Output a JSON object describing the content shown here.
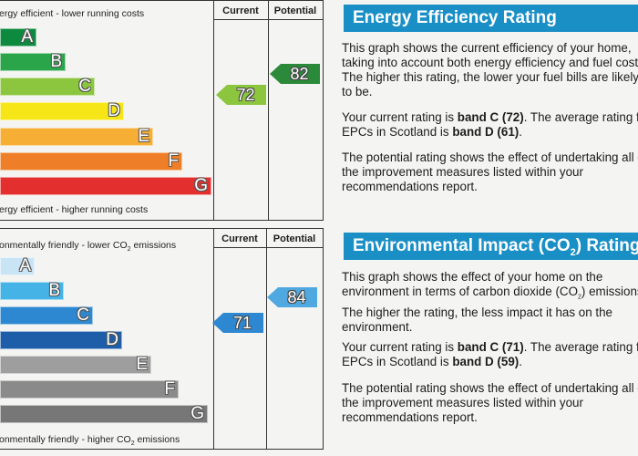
{
  "energy": {
    "current_header": "Current",
    "potential_header": "Potential",
    "top_caption": "ergy efficient - lower running costs",
    "bottom_caption": "ergy efficient - higher running costs",
    "bands": [
      {
        "letter": "A",
        "color": "#0d8a3e"
      },
      {
        "letter": "B",
        "color": "#2aa54a"
      },
      {
        "letter": "C",
        "color": "#8cc63e"
      },
      {
        "letter": "D",
        "color": "#f7e617"
      },
      {
        "letter": "E",
        "color": "#f6ae35"
      },
      {
        "letter": "F",
        "color": "#ef7e28"
      },
      {
        "letter": "G",
        "color": "#e42f2f"
      }
    ],
    "current_value": "72",
    "current_color": "#8cc63e",
    "potential_value": "82",
    "potential_color": "#2a8a3a",
    "title": "Energy Efficiency Rating",
    "para1": "This graph shows the current efficiency of your home, taking into account both energy efficiency and fuel costs. The higher this rating, the lower your fuel bills are likely to be.",
    "para2_prefix": "Your current rating is ",
    "para2_bold1": "band C (72)",
    "para2_mid": ". The average rating for EPCs in Scotland is ",
    "para2_bold2": "band D (61)",
    "para2_end": ".",
    "para3": "The potential rating shows the effect of undertaking all of the improvement measures listed within your recommendations report."
  },
  "environment": {
    "current_header": "Current",
    "potential_header": "Potential",
    "top_caption_prefix": "onmentally friendly - lower CO",
    "top_caption_sub": "2",
    "top_caption_suffix": " emissions",
    "bottom_caption_prefix": "onmentally friendly - higher CO",
    "bottom_caption_sub": "2",
    "bottom_caption_suffix": " emissions",
    "bands": [
      {
        "letter": "A",
        "color": "#c8e4f5"
      },
      {
        "letter": "B",
        "color": "#45b3e6"
      },
      {
        "letter": "C",
        "color": "#2d88d1"
      },
      {
        "letter": "D",
        "color": "#1e5ea8"
      },
      {
        "letter": "E",
        "color": "#9e9e9e"
      },
      {
        "letter": "F",
        "color": "#8a8a8a"
      },
      {
        "letter": "G",
        "color": "#777777"
      }
    ],
    "current_value": "71",
    "current_color": "#2d88d1",
    "potential_value": "84",
    "potential_color": "#4fa8e0",
    "title_prefix": "Environmental Impact (CO",
    "title_sub": "2",
    "title_suffix": ") Rating",
    "para1_prefix": "This graph shows the effect of your home on the environment in terms of carbon dioxide (CO",
    "para1_sub": "2",
    "para1_suffix": ") emissions. The higher the rating, the less impact it has on the environment.",
    "para2_prefix": "Your current rating is ",
    "para2_bold1": "band C (71)",
    "para2_mid": ". The average rating for EPCs in Scotland is ",
    "para2_bold2": "band D (59)",
    "para2_end": ".",
    "para3": "The potential rating shows the effect of undertaking all of the improvement measures listed within your recommendations report."
  }
}
